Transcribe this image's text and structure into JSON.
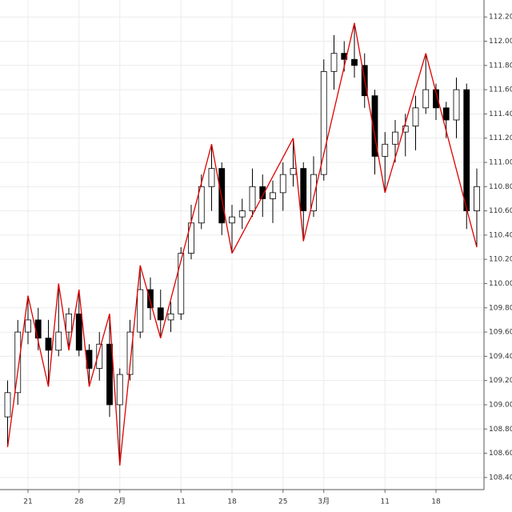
{
  "chart_data": {
    "type": "candlestick",
    "categories": [
      null,
      null,
      "21",
      null,
      null,
      null,
      null,
      "28",
      null,
      null,
      null,
      "2月",
      null,
      null,
      null,
      null,
      null,
      "11",
      null,
      null,
      null,
      null,
      "18",
      null,
      null,
      null,
      null,
      "25",
      null,
      null,
      null,
      "3月",
      null,
      null,
      null,
      null,
      null,
      "11",
      null,
      null,
      null,
      null,
      "18",
      null,
      null,
      null,
      null
    ],
    "open": [
      108.9,
      109.1,
      109.6,
      109.7,
      109.55,
      109.45,
      109.6,
      109.75,
      109.45,
      109.3,
      109.5,
      109.0,
      109.25,
      109.6,
      109.95,
      109.8,
      109.7,
      109.75,
      110.25,
      110.5,
      110.8,
      110.95,
      110.5,
      110.55,
      110.6,
      110.8,
      110.7,
      110.75,
      110.9,
      110.95,
      110.6,
      110.9,
      111.75,
      111.9,
      111.85,
      111.8,
      111.55,
      111.05,
      111.15,
      111.25,
      111.3,
      111.45,
      111.6,
      111.45,
      111.35,
      111.6,
      110.6
    ],
    "high": [
      109.2,
      109.7,
      109.9,
      109.8,
      109.7,
      110.0,
      109.8,
      109.95,
      109.5,
      109.6,
      109.75,
      109.3,
      109.7,
      110.15,
      110.05,
      109.95,
      109.85,
      110.3,
      110.65,
      110.9,
      111.15,
      111.0,
      110.65,
      110.7,
      110.95,
      110.9,
      110.85,
      111.0,
      111.2,
      111.0,
      111.05,
      111.85,
      112.05,
      112.0,
      112.15,
      111.9,
      111.6,
      111.25,
      111.35,
      111.4,
      111.55,
      111.9,
      111.65,
      111.5,
      111.7,
      111.65,
      110.95
    ],
    "low": [
      108.65,
      109.0,
      109.5,
      109.45,
      109.15,
      109.4,
      109.45,
      109.4,
      109.15,
      109.2,
      108.9,
      108.5,
      109.2,
      109.55,
      109.7,
      109.55,
      109.6,
      109.7,
      110.2,
      110.45,
      110.6,
      110.4,
      110.25,
      110.45,
      110.55,
      110.55,
      110.5,
      110.6,
      110.8,
      110.35,
      110.55,
      110.85,
      111.6,
      111.75,
      111.7,
      111.45,
      110.9,
      110.75,
      111.0,
      111.05,
      111.1,
      111.4,
      111.35,
      111.2,
      111.2,
      110.45,
      110.3
    ],
    "close": [
      109.1,
      109.6,
      109.7,
      109.55,
      109.45,
      109.6,
      109.75,
      109.45,
      109.3,
      109.5,
      109.0,
      109.25,
      109.6,
      109.95,
      109.8,
      109.7,
      109.75,
      110.25,
      110.5,
      110.8,
      110.95,
      110.5,
      110.55,
      110.6,
      110.8,
      110.7,
      110.75,
      110.9,
      110.95,
      110.6,
      110.9,
      111.75,
      111.9,
      111.85,
      111.8,
      111.55,
      111.05,
      111.15,
      111.25,
      111.3,
      111.45,
      111.6,
      111.45,
      111.35,
      111.6,
      110.6,
      110.8
    ],
    "up_color": "#ffffff",
    "down_color": "#000000",
    "zigzag": {
      "color": "#e00000",
      "values": [
        108.65,
        null,
        109.9,
        null,
        109.15,
        110.0,
        109.45,
        109.95,
        109.15,
        null,
        109.75,
        108.5,
        null,
        110.15,
        null,
        109.55,
        null,
        null,
        null,
        null,
        111.15,
        null,
        110.25,
        null,
        null,
        null,
        null,
        null,
        111.2,
        110.35,
        null,
        null,
        null,
        null,
        112.15,
        null,
        null,
        110.75,
        null,
        null,
        null,
        111.9,
        null,
        null,
        null,
        null,
        110.3
      ]
    },
    "ylim": [
      108.3,
      112.34
    ],
    "yticks": [
      {
        "value": 108.4,
        "label": "108.400"
      },
      {
        "value": 108.6,
        "label": "108.600"
      },
      {
        "value": 108.8,
        "label": "108.800"
      },
      {
        "value": 109.0,
        "label": "109.000"
      },
      {
        "value": 109.2,
        "label": "109.200"
      },
      {
        "value": 109.4,
        "label": "109.400"
      },
      {
        "value": 109.6,
        "label": "109.600"
      },
      {
        "value": 109.8,
        "label": "109.800"
      },
      {
        "value": 110.0,
        "label": "110.000"
      },
      {
        "value": 110.2,
        "label": "110.200"
      },
      {
        "value": 110.4,
        "label": "110.400"
      },
      {
        "value": 110.6,
        "label": "110.600"
      },
      {
        "value": 110.8,
        "label": "110.800"
      },
      {
        "value": 111.0,
        "label": "111.000"
      },
      {
        "value": 111.2,
        "label": "111.200"
      },
      {
        "value": 111.4,
        "label": "111.400"
      },
      {
        "value": 111.6,
        "label": "111.600"
      },
      {
        "value": 111.8,
        "label": "111.800"
      },
      {
        "value": 112.0,
        "label": "112.000"
      },
      {
        "value": 112.2,
        "label": "112.200"
      }
    ],
    "grid": true
  }
}
